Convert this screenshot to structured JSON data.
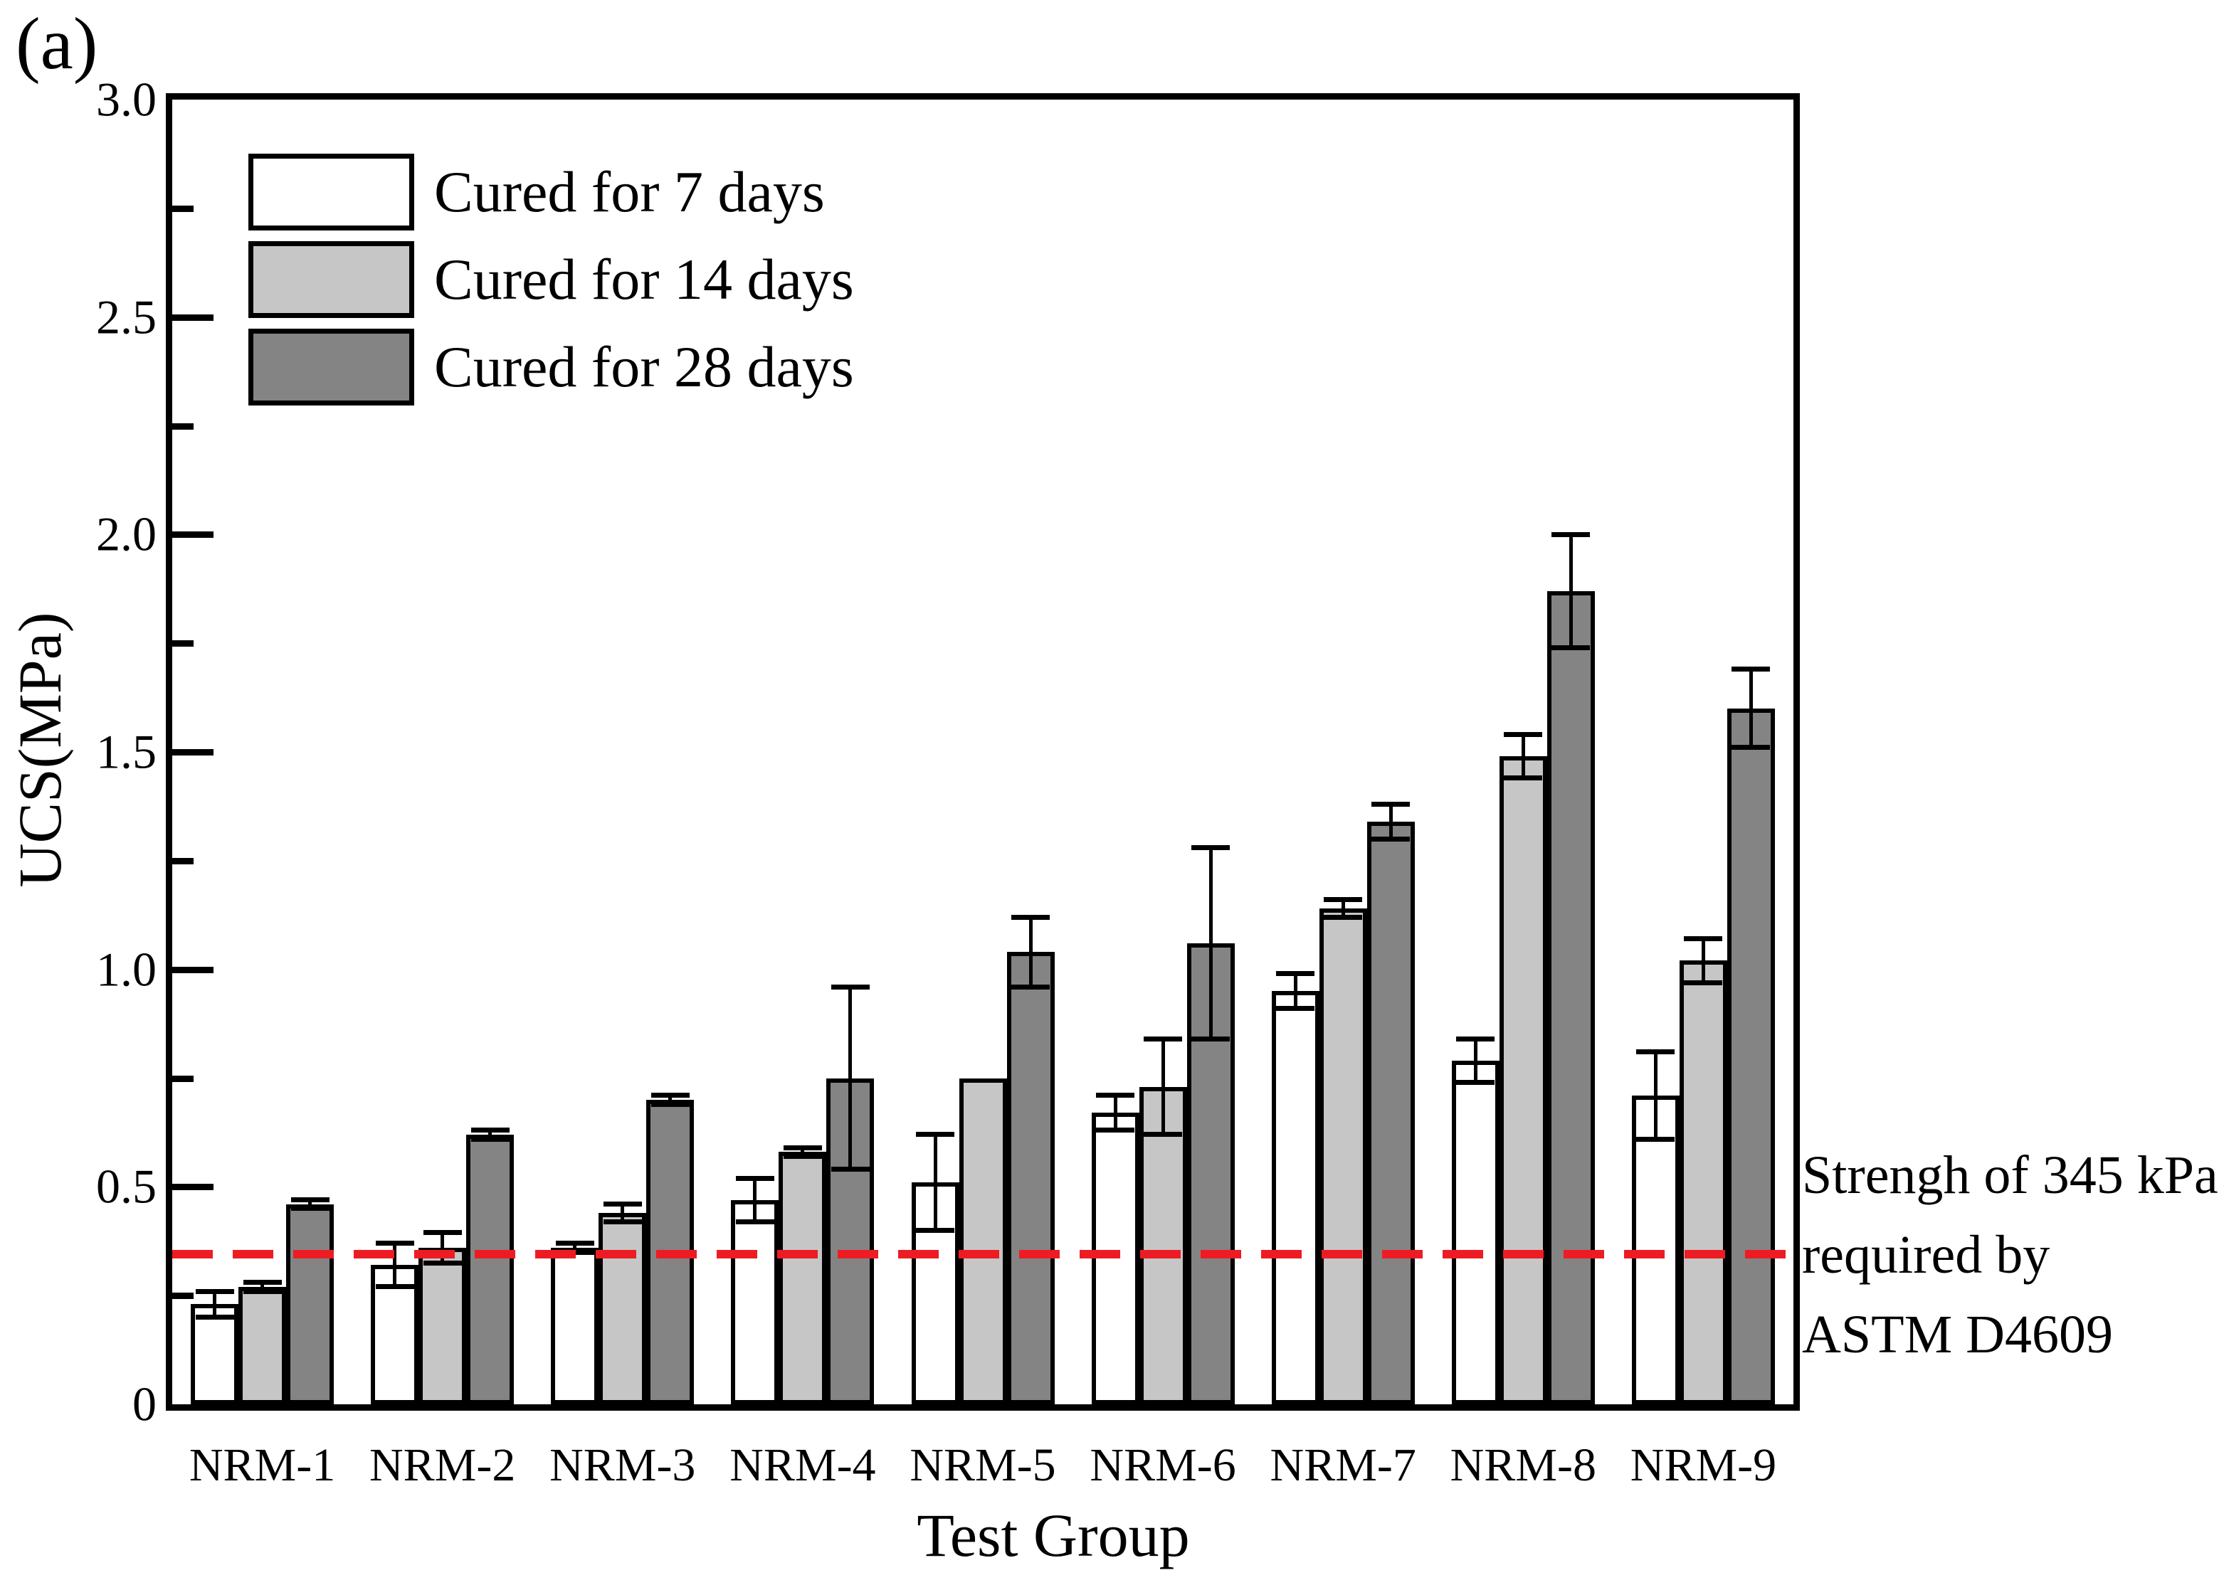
{
  "chart_data": {
    "type": "bar",
    "panel_label": "(a)",
    "xlabel": "Test Group",
    "ylabel": "UCS(MPa)",
    "ylim": [
      0,
      3.0
    ],
    "ytick_major_step": 0.5,
    "ytick_minor_step": 0.25,
    "ytick_values": [
      0,
      0.5,
      1.0,
      1.5,
      2.0,
      2.5,
      3.0
    ],
    "ytick_labels": [
      "0",
      "0.5",
      "1.0",
      "1.5",
      "2.0",
      "2.5",
      "3.0"
    ],
    "grid": false,
    "legend_position": "top-left-inside",
    "categories": [
      "NRM-1",
      "NRM-2",
      "NRM-3",
      "NRM-4",
      "NRM-5",
      "NRM-6",
      "NRM-7",
      "NRM-8",
      "NRM-9"
    ],
    "series": [
      {
        "name": "Cured for 7 days",
        "fill": "#ffffff",
        "values": [
          0.23,
          0.32,
          0.36,
          0.47,
          0.51,
          0.67,
          0.95,
          0.79,
          0.71
        ],
        "errors": [
          0.03,
          0.05,
          0.01,
          0.05,
          0.11,
          0.04,
          0.04,
          0.05,
          0.1
        ]
      },
      {
        "name": "Cured for 14 days",
        "fill": "#c6c6c6",
        "values": [
          0.27,
          0.36,
          0.44,
          0.58,
          0.75,
          0.73,
          1.14,
          1.49,
          1.02
        ],
        "errors": [
          0.01,
          0.035,
          0.02,
          0.01,
          0,
          0.11,
          0.02,
          0.05,
          0.05
        ]
      },
      {
        "name": "Cured for 28 days",
        "fill": "#848484",
        "values": [
          0.46,
          0.62,
          0.7,
          0.75,
          1.04,
          1.06,
          1.34,
          1.87,
          1.6
        ],
        "errors": [
          0.01,
          0.01,
          0.01,
          0.21,
          0.08,
          0.22,
          0.04,
          0.13,
          0.09
        ]
      }
    ],
    "reference_line": {
      "value": 0.345,
      "color": "#ed1c24",
      "style": "dashed",
      "label_lines": [
        "Strengh of 345 kPa",
        "required by",
        "ASTM D4609"
      ]
    }
  }
}
